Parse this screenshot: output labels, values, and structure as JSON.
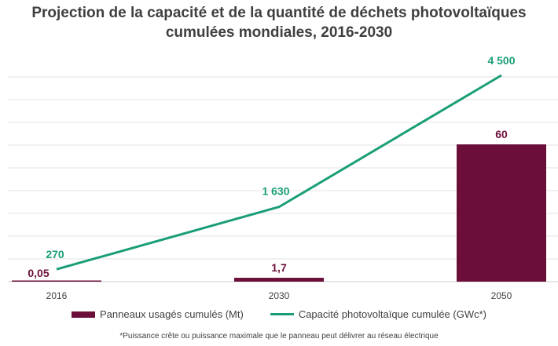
{
  "title_lines": [
    "Projection de la capacité et de la quantité de déchets photovoltaïques",
    "cumulées mondiales, 2016-2030"
  ],
  "chart_data": {
    "type": "bar+line",
    "categories": [
      "2016",
      "2030",
      "2050"
    ],
    "series": [
      {
        "name": "Panneaux usagés cumulés (Mt)",
        "type": "bar",
        "values": [
          0.05,
          1.7,
          60
        ],
        "labels": [
          "0,05",
          "1,7",
          "60"
        ],
        "color": "#6b0f3a",
        "ylim": [
          0,
          60
        ]
      },
      {
        "name": "Capacité photovoltaïque cumulée (GWc*)",
        "type": "line",
        "values": [
          270,
          1630,
          4500
        ],
        "labels": [
          "270",
          "1 630",
          "4 500"
        ],
        "color": "#1a9e77",
        "ylim": [
          0,
          5000
        ]
      }
    ],
    "grid": true,
    "legend_position": "bottom"
  },
  "footnote": "*Puissance crête ou puissance maximale que le panneau peut délivrer au réseau électrique"
}
